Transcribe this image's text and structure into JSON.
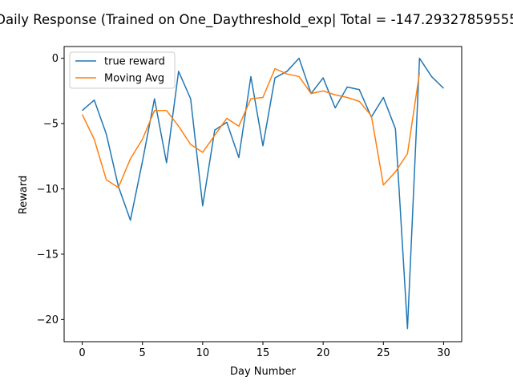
{
  "chart_data": {
    "type": "line",
    "title": "Daily Response (Trained on One_Daythreshold_exp| Total = -147.29327859555",
    "xlabel": "Day Number",
    "ylabel": "Reward",
    "xlim": [
      -1.5,
      31.5
    ],
    "ylim": [
      -21.7,
      0.9
    ],
    "xticks": [
      0,
      5,
      10,
      15,
      20,
      25,
      30
    ],
    "yticks": [
      0,
      -5,
      -10,
      -15,
      -20
    ],
    "grid": false,
    "legend_position": "top-left",
    "series": [
      {
        "name": "true reward",
        "color": "#1f77b4",
        "x": [
          0,
          1,
          2,
          3,
          4,
          5,
          6,
          7,
          8,
          9,
          10,
          11,
          12,
          13,
          14,
          15,
          16,
          17,
          18,
          19,
          20,
          21,
          22,
          23,
          24,
          25,
          26,
          27,
          28,
          29,
          30
        ],
        "y": [
          -4.0,
          -3.2,
          -5.8,
          -9.8,
          -12.4,
          -7.9,
          -3.1,
          -8.0,
          -1.0,
          -3.1,
          -11.3,
          -5.5,
          -4.9,
          -7.6,
          -1.4,
          -6.7,
          -1.5,
          -1.0,
          0.0,
          -2.7,
          -1.5,
          -3.8,
          -2.2,
          -2.4,
          -4.5,
          -3.0,
          -5.4,
          -20.7,
          0.0,
          -1.4,
          -2.3
        ]
      },
      {
        "name": "Moving Avg",
        "color": "#ff7f0e",
        "x": [
          0,
          1,
          2,
          3,
          4,
          5,
          6,
          7,
          8,
          9,
          10,
          11,
          12,
          13,
          14,
          15,
          16,
          17,
          18,
          19,
          20,
          21,
          22,
          23,
          24,
          25,
          26,
          27,
          28
        ],
        "y": [
          -4.3,
          -6.2,
          -9.3,
          -9.9,
          -7.7,
          -6.2,
          -4.0,
          -4.0,
          -5.2,
          -6.6,
          -7.2,
          -5.9,
          -4.6,
          -5.2,
          -3.1,
          -3.0,
          -0.8,
          -1.2,
          -1.4,
          -2.7,
          -2.5,
          -2.8,
          -3.0,
          -3.3,
          -4.4,
          -9.7,
          -8.7,
          -7.3,
          -1.1
        ]
      }
    ]
  }
}
